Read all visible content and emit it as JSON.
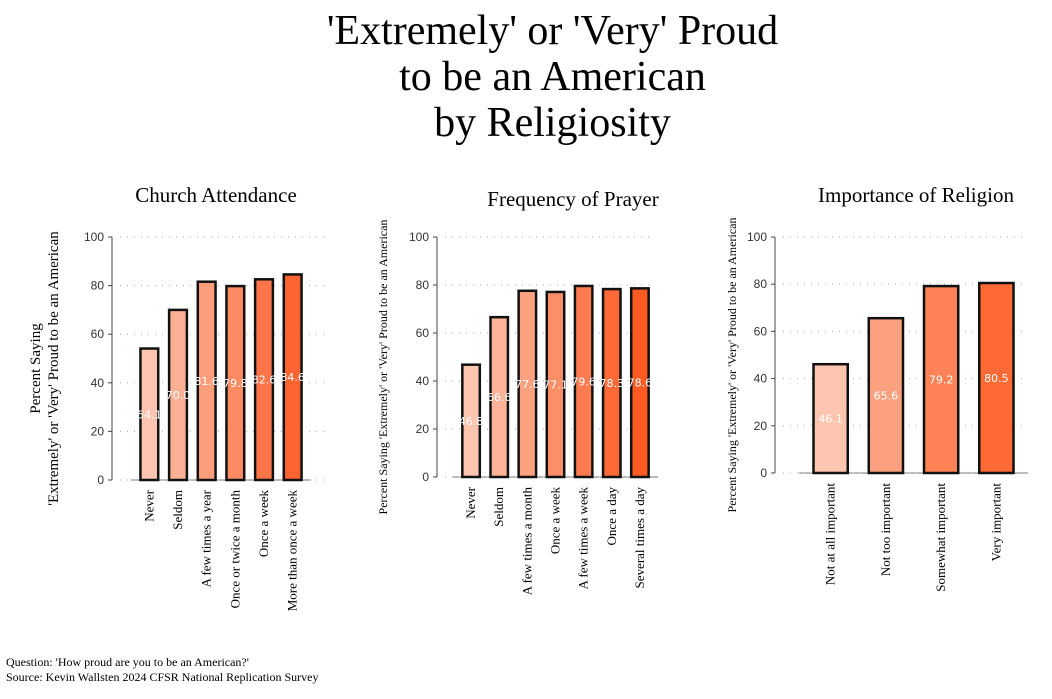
{
  "title_lines": [
    "'Extremely' or 'Very' Proud",
    "to be an American",
    "by Religiosity"
  ],
  "footer": {
    "question": "Question: 'How proud are you to be an American?'",
    "source": "Source: Kevin Wallsten 2024 CFSR National Replication Survey"
  },
  "chart_data": [
    {
      "type": "bar",
      "title": "Church Attendance",
      "ylabel_lines": [
        "Percent Saying",
        "'Extremely' or 'Very' Proud to be an American"
      ],
      "ylim": [
        0,
        100
      ],
      "yticks": [
        0,
        20,
        40,
        60,
        80,
        100
      ],
      "grid": "dotted",
      "categories": [
        "Never",
        "Seldom",
        "A few times a year",
        "Once or twice a month",
        "Once a week",
        "More than once a week"
      ],
      "values": [
        54.1,
        70.0,
        81.6,
        79.8,
        82.6,
        84.6
      ],
      "value_labels": [
        "54.1",
        "70.0",
        "81.6",
        "79.8",
        "82.6",
        "84.6"
      ],
      "colors": [
        "#fcc5b0",
        "#fcb196",
        "#fc9d7c",
        "#fc8a63",
        "#fd7549",
        "#fe6330"
      ]
    },
    {
      "type": "bar",
      "title": "Frequency of Prayer",
      "ylabel_lines": [
        "Percent Saying 'Extremely' or 'Very' Proud to be an American"
      ],
      "ylim": [
        0,
        100
      ],
      "yticks": [
        0,
        20,
        40,
        60,
        80,
        100
      ],
      "grid": "dotted",
      "categories": [
        "Never",
        "Seldom",
        "A few times a month",
        "Once a week",
        "A few times a week",
        "Once a day",
        "Several times a day"
      ],
      "values": [
        46.8,
        66.6,
        77.6,
        77.1,
        79.6,
        78.3,
        78.6
      ],
      "value_labels": [
        "46.8",
        "66.6",
        "77.6",
        "77.1",
        "79.6",
        "78.3",
        "78.6"
      ],
      "colors": [
        "#fcc5b0",
        "#fcb398",
        "#fca180",
        "#fc8e68",
        "#fd7b50",
        "#fd6a38",
        "#fe5a22"
      ]
    },
    {
      "type": "bar",
      "title": "Importance of Religion",
      "ylabel_lines": [
        "Percent Saying 'Extremely' or 'Very' Proud to be an American"
      ],
      "ylim": [
        0,
        100
      ],
      "yticks": [
        0,
        20,
        40,
        60,
        80,
        100
      ],
      "grid": "dotted",
      "categories": [
        "Not at all important",
        "Not too important",
        "Somewhat important",
        "Very important"
      ],
      "values": [
        46.1,
        65.6,
        79.2,
        80.5
      ],
      "value_labels": [
        "46.1",
        "65.6",
        "79.2",
        "80.5"
      ],
      "colors": [
        "#fcc5b0",
        "#fca180",
        "#fd8356",
        "#fe6a36"
      ]
    }
  ]
}
